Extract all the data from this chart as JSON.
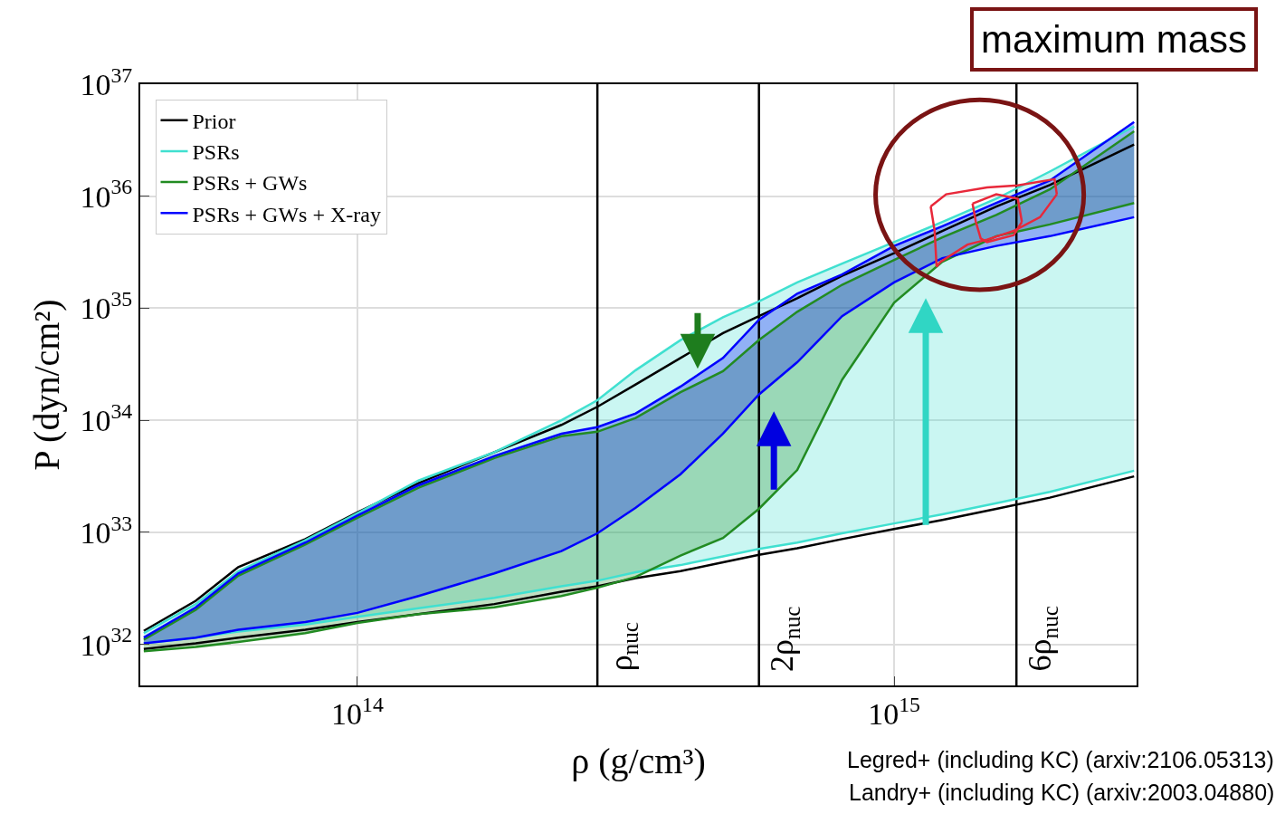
{
  "chart_data": {
    "type": "line",
    "xlabel": "ρ (g/cm³)",
    "ylabel": "P (dyn/cm²)",
    "x": [
      40000000000000.0,
      50000000000000.0,
      60000000000000.0,
      80000000000000.0,
      100000000000000.0,
      130000000000000.0,
      180000000000000.0,
      240000000000000.0,
      280000000000000.0,
      330000000000000.0,
      400000000000000.0,
      480000000000000.0,
      560000000000000.0,
      660000000000000.0,
      800000000000000.0,
      1000000000000000.0,
      1230000000000000.0,
      1550000000000000.0,
      1950000000000000.0,
      2800000000000000.0
    ],
    "series": [
      {
        "name": "Prior",
        "color": "#000000",
        "values": [
          1.32e+32,
          2.45e+32,
          4.9e+32,
          8.7e+32,
          1.51e+33,
          2.75e+33,
          5.2e+33,
          9.1e+33,
          1.32e+34,
          2.09e+34,
          3.6e+34,
          6e+34,
          8.5e+34,
          1.23e+35,
          1.95e+35,
          3.1e+35,
          4.9e+35,
          8.1e+35,
          1.26e+36,
          2.9e+36
        ]
      },
      {
        "color": "#000000",
        "values": [
          9.1e+31,
          1.02e+32,
          1.15e+32,
          1.35e+32,
          1.58e+32,
          1.86e+32,
          2.29e+32,
          2.95e+32,
          3.3e+32,
          3.9e+32,
          4.5e+32,
          5.4e+32,
          6.3e+32,
          7.2e+32,
          8.7e+32,
          1.07e+33,
          1.29e+33,
          1.62e+33,
          2.04e+33,
          3.16e+33
        ]
      },
      {
        "name": "PSRs",
        "color": "#40e0d0",
        "values": [
          1.26e+32,
          2.29e+32,
          4.5e+32,
          8.5e+32,
          1.48e+33,
          2.9e+33,
          5.2e+33,
          1e+34,
          1.51e+34,
          2.8e+34,
          5.2e+34,
          8.3e+34,
          1.15e+35,
          1.7e+35,
          2.5e+35,
          3.9e+35,
          5.9e+35,
          9.5e+35,
          1.66e+36,
          4.2e+36
        ],
        "upper": [
          1.26e+32,
          2.29e+32,
          4.5e+32,
          8.5e+32,
          1.48e+33,
          2.9e+33,
          5.2e+33,
          1e+34,
          1.51e+34,
          2.8e+34,
          5.2e+34,
          8.3e+34,
          1.15e+35,
          1.7e+35,
          2.5e+35,
          3.9e+35,
          5.9e+35,
          9.5e+35,
          1.66e+36,
          4.2e+36
        ],
        "lower": [
          1.02e+32,
          1.15e+32,
          1.3e+32,
          1.5e+32,
          1.76e+32,
          2.1e+32,
          2.6e+32,
          3.3e+32,
          3.7e+32,
          4.4e+32,
          5.1e+32,
          6.1e+32,
          7.1e+32,
          8.1e+32,
          9.8e+32,
          1.2e+33,
          1.45e+33,
          1.82e+33,
          2.3e+33,
          3.55e+33
        ]
      },
      {
        "name": "PSRs + GWs",
        "color": "#228b22",
        "values": [
          1.1e+32,
          2.04e+32,
          4.1e+32,
          7.8e+32,
          1.35e+33,
          2.5e+33,
          4.6e+33,
          7.2e+33,
          7.9e+33,
          1.05e+34,
          1.78e+34,
          2.75e+34,
          5.2e+34,
          9.3e+34,
          1.62e+35,
          2.7e+35,
          4.3e+35,
          6.8e+35,
          1.15e+36,
          3.8e+36
        ],
        "upper": [
          1.1e+32,
          2.04e+32,
          4.1e+32,
          7.8e+32,
          1.35e+33,
          2.5e+33,
          4.6e+33,
          7.2e+33,
          7.9e+33,
          1.05e+34,
          1.78e+34,
          2.75e+34,
          5.2e+34,
          9.3e+34,
          1.62e+35,
          2.7e+35,
          4.3e+35,
          6.8e+35,
          1.15e+36,
          3.8e+36
        ],
        "lower": [
          8.7e+31,
          9.5e+31,
          1.05e+32,
          1.26e+32,
          1.55e+32,
          1.86e+32,
          2.14e+32,
          2.7e+32,
          3.2e+32,
          4e+32,
          6.2e+32,
          8.9e+32,
          1.62e+33,
          3.6e+33,
          2.3e+34,
          1.12e+35,
          2.6e+35,
          4.4e+35,
          5.6e+35,
          8.7e+35
        ]
      },
      {
        "name": "PSRs + GWs + X-ray",
        "color": "#0000ff",
        "values": [
          1.15e+32,
          2.14e+32,
          4.3e+32,
          8.1e+32,
          1.41e+33,
          2.63e+33,
          4.8e+33,
          7.6e+33,
          8.7e+33,
          1.15e+34,
          2e+34,
          3.6e+34,
          7.9e+34,
          1.35e+35,
          2e+35,
          3.6e+35,
          5.4e+35,
          8.7e+35,
          1.38e+36,
          4.6e+36
        ],
        "upper": [
          1.15e+32,
          2.14e+32,
          4.3e+32,
          8.1e+32,
          1.41e+33,
          2.63e+33,
          4.8e+33,
          7.6e+33,
          8.7e+33,
          1.15e+34,
          2e+34,
          3.6e+34,
          7.9e+34,
          1.35e+35,
          2e+35,
          3.6e+35,
          5.4e+35,
          8.7e+35,
          1.38e+36,
          4.6e+36
        ],
        "lower": [
          1.02e+32,
          1.15e+32,
          1.35e+32,
          1.58e+32,
          1.91e+32,
          2.7e+32,
          4.3e+32,
          6.8e+32,
          9.8e+32,
          1.66e+33,
          3.3e+33,
          7.6e+33,
          1.7e+34,
          3.3e+34,
          8.5e+34,
          1.7e+35,
          2.8e+35,
          3.6e+35,
          4.4e+35,
          6.5e+35
        ]
      },
      {
        "color": "#40e0d0",
        "values": [
          1.02e+32,
          1.15e+32,
          1.3e+32,
          1.5e+32,
          1.76e+32,
          2.1e+32,
          2.6e+32,
          3.3e+32,
          3.7e+32,
          4.4e+32,
          5.1e+32,
          6.1e+32,
          7.1e+32,
          8.1e+32,
          9.8e+32,
          1.2e+33,
          1.45e+33,
          1.82e+33,
          2.3e+33,
          3.55e+33
        ]
      },
      {
        "color": "#228b22",
        "values": [
          8.7e+31,
          9.5e+31,
          1.05e+32,
          1.26e+32,
          1.55e+32,
          1.86e+32,
          2.14e+32,
          2.7e+32,
          3.2e+32,
          4e+32,
          6.2e+32,
          8.9e+32,
          1.62e+33,
          3.6e+33,
          2.3e+34,
          1.12e+35,
          2.6e+35,
          4.4e+35,
          5.6e+35,
          8.7e+35
        ]
      },
      {
        "color": "#0000ff",
        "values": [
          1.02e+32,
          1.15e+32,
          1.35e+32,
          1.58e+32,
          1.91e+32,
          2.7e+32,
          4.3e+32,
          6.8e+32,
          9.8e+32,
          1.66e+33,
          3.3e+33,
          7.6e+33,
          1.7e+34,
          3.3e+34,
          8.5e+34,
          1.7e+35,
          2.8e+35,
          3.6e+35,
          4.4e+35,
          6.5e+35
        ]
      },
      {
        "color": "#e8283a",
        "x": [
          1170000000000000.0,
          1250000000000000.0,
          1490000000000000.0,
          1700000000000000.0,
          1990000000000000.0,
          2010000000000000.0
        ],
        "values": [
          8.1e+35,
          1.04e+36,
          1.2e+36,
          1.25e+36,
          1.42e+36,
          1.04e+36
        ]
      },
      {
        "color": "#e8283a",
        "x": [
          1170000000000000.0,
          1190000000000000.0,
          1200000000000000.0,
          1220000000000000.0,
          1370000000000000.0,
          1490000000000000.0,
          1670000000000000.0,
          1870000000000000.0,
          2010000000000000.0
        ],
        "values": [
          8.1e+35,
          4.9e+35,
          2.35e+35,
          2.6e+35,
          3.7e+35,
          4.1e+35,
          4.9e+35,
          6.5e+35,
          1.04e+36
        ]
      },
      {
        "color": "#e8283a",
        "x": [
          1400000000000000.0,
          1550000000000000.0,
          1700000000000000.0,
          1730000000000000.0
        ],
        "values": [
          8.6e+35,
          1.04e+36,
          9.5e+35,
          5.9e+35
        ]
      },
      {
        "color": "#e8283a",
        "x": [
          1400000000000000.0,
          1420000000000000.0,
          1450000000000000.0,
          1490000000000000.0,
          1670000000000000.0,
          1730000000000000.0
        ],
        "values": [
          8.6e+35,
          5.9e+35,
          4.2e+35,
          3.9e+35,
          4.5e+35,
          5.9e+35
        ]
      }
    ],
    "xlim": [
      39400000000000.0,
      2830000000000000.0
    ],
    "ylim": [
      4.3e+31,
      1e+37
    ],
    "xticks": [
      {
        "value": 100000000000000.0,
        "label": "10$^{14}$"
      },
      {
        "value": 1000000000000000.0,
        "label": "10$^{15}$"
      }
    ],
    "yticks": [
      {
        "value": 1e+32,
        "label": "10$^{32}$"
      },
      {
        "value": 1e+33,
        "label": "10$^{33}$"
      },
      {
        "value": 1e+34,
        "label": "10$^{34}$"
      },
      {
        "value": 1e+35,
        "label": "10$^{35}$"
      },
      {
        "value": 1e+36,
        "label": "10$^{36}$"
      },
      {
        "value": 1e+37,
        "label": "10$^{37}$"
      }
    ],
    "log": "xy",
    "grid": true,
    "legend": "top left",
    "marker": "none",
    "line_style": "solid",
    "ref_lines": [
      {
        "axis": "x",
        "value": 280000000000000.0,
        "label": "ρ$_{nuc}$",
        "color": "#000000"
      },
      {
        "axis": "x",
        "value": 560000000000000.0,
        "label": "2ρ$_{nuc}$",
        "color": "#000000"
      },
      {
        "axis": "x",
        "value": 1690000000000000.0,
        "label": "6ρ$_{nuc}$",
        "color": "#000000"
      }
    ],
    "annotations": [
      "maximum mass",
      "Legred+ (including KC) (arxiv:2106.05313)",
      "Landry+ (including KC) (arxiv:2003.04880)"
    ]
  }
}
